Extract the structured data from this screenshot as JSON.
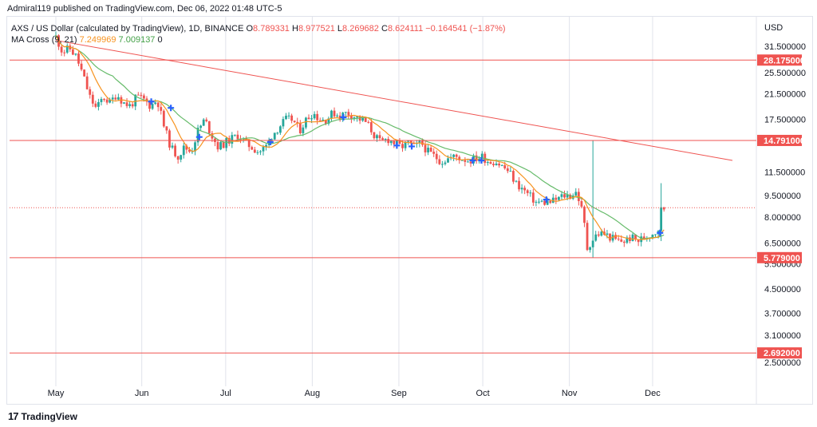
{
  "header": {
    "text": "Admiral119 published on TradingView.com, Dec 06, 2022 01:48 UTC-5"
  },
  "legend": {
    "symbol": "AXS / US Dollar (calculated by TradingView), 1D, BINANCE",
    "o_label": "O",
    "o": "8.789331",
    "h_label": "H",
    "h": "8.977521",
    "l_label": "L",
    "l": "8.269682",
    "c_label": "C",
    "c": "8.624111",
    "change": "−0.164541 (−1.87%)",
    "ma_label": "MA Cross (9, 21)",
    "ma_fast": "7.249969",
    "ma_slow": "7.009137",
    "eye": "0"
  },
  "footer": {
    "logo": "17",
    "brand": "TradingView"
  },
  "colors": {
    "up": "#26a69a",
    "down": "#ef5350",
    "ma_fast": "#f7931e",
    "ma_slow": "#66bb6a",
    "level": "#ef5350",
    "grid": "#e0e3eb",
    "cross": "#2962ff"
  },
  "chart_data": {
    "type": "candlestick",
    "y_scale": "log",
    "currency": "USD",
    "ylim": [
      2.1,
      40
    ],
    "x_range": [
      0,
      1000
    ],
    "months": [
      {
        "label": "May",
        "x": 0
      },
      {
        "label": "Jun",
        "x": 127
      },
      {
        "label": "Jul",
        "x": 251
      },
      {
        "label": "Aug",
        "x": 379
      },
      {
        "label": "Sep",
        "x": 507
      },
      {
        "label": "Oct",
        "x": 631
      },
      {
        "label": "Nov",
        "x": 759
      },
      {
        "label": "Dec",
        "x": 882
      }
    ],
    "y_ticks": [
      "31.500000",
      "25.500000",
      "21.500000",
      "17.500000",
      "11.500000",
      "9.500000",
      "8.000000",
      "6.500000",
      "5.500000",
      "4.500000",
      "3.700000",
      "3.100000",
      "2.500000"
    ],
    "levels": [
      "28.175000",
      "14.791000",
      "5.779000",
      "2.692000"
    ],
    "current_price": "8.624111",
    "trendline": {
      "x1": 0,
      "y1": 33.0,
      "x2": 1000,
      "y2": 12.6
    },
    "anchors": [
      {
        "x": 0,
        "p": 34
      },
      {
        "x": 10,
        "p": 30
      },
      {
        "x": 20,
        "p": 31
      },
      {
        "x": 30,
        "p": 29
      },
      {
        "x": 40,
        "p": 25
      },
      {
        "x": 50,
        "p": 21
      },
      {
        "x": 60,
        "p": 19
      },
      {
        "x": 70,
        "p": 21
      },
      {
        "x": 80,
        "p": 20
      },
      {
        "x": 90,
        "p": 21.5
      },
      {
        "x": 100,
        "p": 20
      },
      {
        "x": 110,
        "p": 19.5
      },
      {
        "x": 120,
        "p": 21
      },
      {
        "x": 130,
        "p": 20.5
      },
      {
        "x": 140,
        "p": 19.5
      },
      {
        "x": 150,
        "p": 20.5
      },
      {
        "x": 160,
        "p": 16.5
      },
      {
        "x": 170,
        "p": 14
      },
      {
        "x": 180,
        "p": 13
      },
      {
        "x": 190,
        "p": 14
      },
      {
        "x": 200,
        "p": 13.5
      },
      {
        "x": 210,
        "p": 16
      },
      {
        "x": 220,
        "p": 17.5
      },
      {
        "x": 230,
        "p": 15.5
      },
      {
        "x": 240,
        "p": 14
      },
      {
        "x": 250,
        "p": 14.5
      },
      {
        "x": 260,
        "p": 15
      },
      {
        "x": 270,
        "p": 15.5
      },
      {
        "x": 280,
        "p": 14.5
      },
      {
        "x": 290,
        "p": 14
      },
      {
        "x": 300,
        "p": 13.5
      },
      {
        "x": 310,
        "p": 14
      },
      {
        "x": 320,
        "p": 15.5
      },
      {
        "x": 330,
        "p": 16.5
      },
      {
        "x": 340,
        "p": 17.5
      },
      {
        "x": 350,
        "p": 17.5
      },
      {
        "x": 360,
        "p": 16
      },
      {
        "x": 370,
        "p": 17.5
      },
      {
        "x": 380,
        "p": 18.5
      },
      {
        "x": 390,
        "p": 17.5
      },
      {
        "x": 400,
        "p": 17.5
      },
      {
        "x": 410,
        "p": 18.5
      },
      {
        "x": 420,
        "p": 18
      },
      {
        "x": 430,
        "p": 18.5
      },
      {
        "x": 440,
        "p": 18
      },
      {
        "x": 450,
        "p": 17.5
      },
      {
        "x": 460,
        "p": 17
      },
      {
        "x": 470,
        "p": 15.5
      },
      {
        "x": 480,
        "p": 14.5
      },
      {
        "x": 490,
        "p": 15
      },
      {
        "x": 500,
        "p": 14.5
      },
      {
        "x": 510,
        "p": 14
      },
      {
        "x": 520,
        "p": 14.5
      },
      {
        "x": 530,
        "p": 14
      },
      {
        "x": 540,
        "p": 14.5
      },
      {
        "x": 550,
        "p": 13.5
      },
      {
        "x": 560,
        "p": 13
      },
      {
        "x": 570,
        "p": 12.5
      },
      {
        "x": 580,
        "p": 12.8
      },
      {
        "x": 590,
        "p": 13
      },
      {
        "x": 600,
        "p": 12.8
      },
      {
        "x": 610,
        "p": 12.6
      },
      {
        "x": 620,
        "p": 12.8
      },
      {
        "x": 630,
        "p": 13
      },
      {
        "x": 640,
        "p": 12.5
      },
      {
        "x": 650,
        "p": 12.5
      },
      {
        "x": 660,
        "p": 12
      },
      {
        "x": 670,
        "p": 11.5
      },
      {
        "x": 680,
        "p": 10.5
      },
      {
        "x": 690,
        "p": 10
      },
      {
        "x": 700,
        "p": 9.5
      },
      {
        "x": 710,
        "p": 9
      },
      {
        "x": 720,
        "p": 9
      },
      {
        "x": 730,
        "p": 9
      },
      {
        "x": 740,
        "p": 9.2
      },
      {
        "x": 750,
        "p": 9.5
      },
      {
        "x": 760,
        "p": 9.5
      },
      {
        "x": 770,
        "p": 9.8
      },
      {
        "x": 780,
        "p": 8
      },
      {
        "x": 785,
        "p": 6.2
      },
      {
        "x": 790,
        "p": 6.5
      },
      {
        "x": 800,
        "p": 7
      },
      {
        "x": 810,
        "p": 7
      },
      {
        "x": 820,
        "p": 6.8
      },
      {
        "x": 830,
        "p": 6.6
      },
      {
        "x": 840,
        "p": 6.6
      },
      {
        "x": 850,
        "p": 6.8
      },
      {
        "x": 860,
        "p": 6.6
      },
      {
        "x": 870,
        "p": 6.8
      },
      {
        "x": 880,
        "p": 7
      },
      {
        "x": 890,
        "p": 7.2
      },
      {
        "x": 895,
        "p": 8.6
      }
    ],
    "spikes": [
      {
        "x": 795,
        "high": 14.791,
        "low": 5.779
      },
      {
        "x": 895,
        "high": 10.5,
        "low": 6.6
      }
    ],
    "cross_markers": [
      {
        "x": 141,
        "p": 20.2
      },
      {
        "x": 170,
        "p": 19.2
      },
      {
        "x": 212,
        "p": 15.2
      },
      {
        "x": 317,
        "p": 14.6
      },
      {
        "x": 425,
        "p": 17.8
      },
      {
        "x": 504,
        "p": 14.2
      },
      {
        "x": 526,
        "p": 14.1
      },
      {
        "x": 616,
        "p": 12.6
      },
      {
        "x": 629,
        "p": 12.6
      },
      {
        "x": 725,
        "p": 9.2
      },
      {
        "x": 893,
        "p": 7.05
      }
    ]
  }
}
